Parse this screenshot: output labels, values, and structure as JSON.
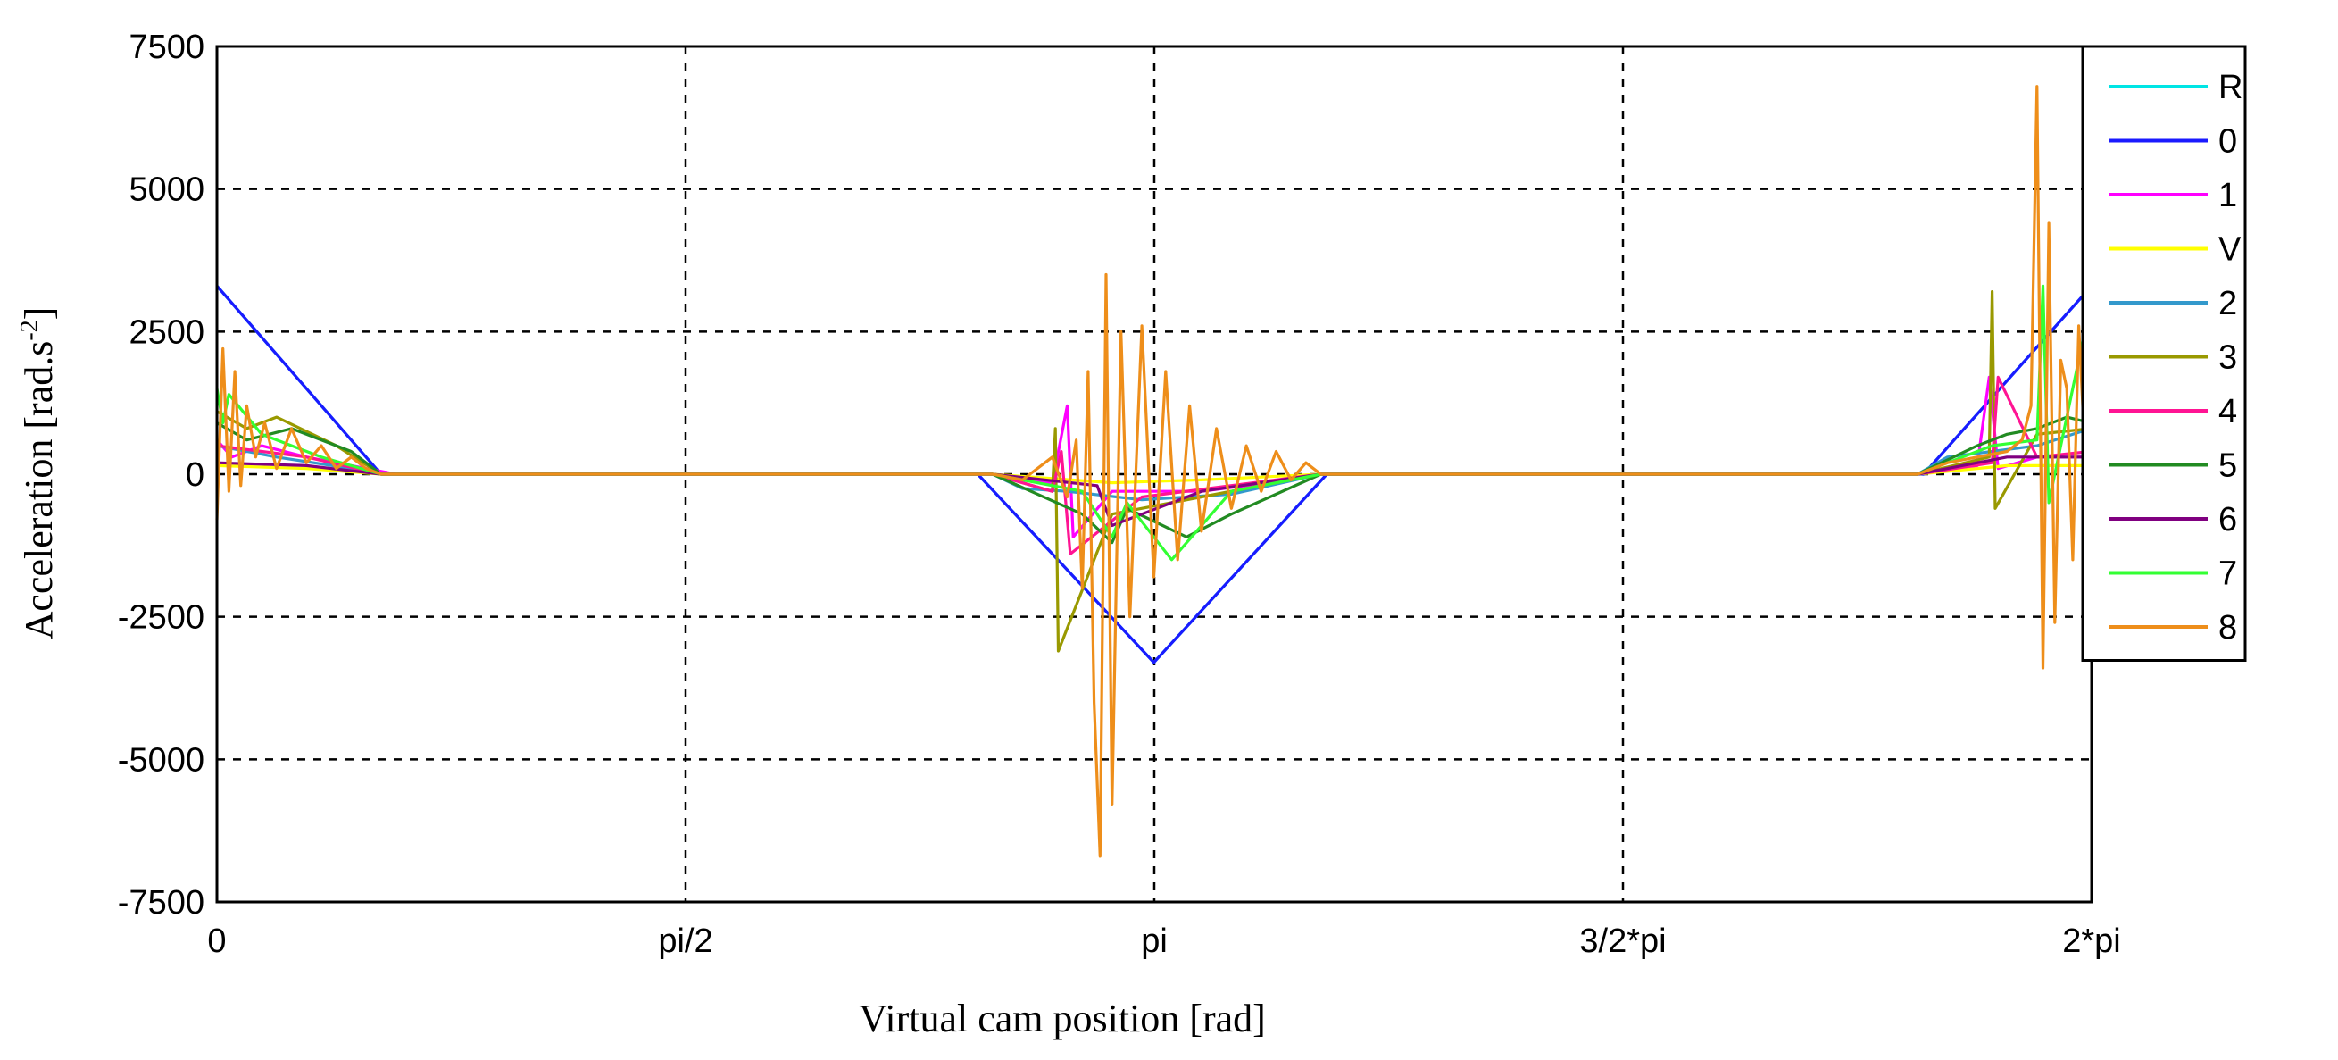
{
  "chart_data": {
    "type": "line",
    "title": "",
    "xlabel": "Virtual cam position [rad]",
    "ylabel": "Acceleration [rad.s",
    "ylabel_superscript": "-2",
    "ylabel_suffix": "]",
    "xlim": [
      0,
      6.2832
    ],
    "ylim": [
      -7500,
      7500
    ],
    "x_ticks": [
      {
        "value": 0,
        "label": "0"
      },
      {
        "value": 1.5708,
        "label": "pi/2"
      },
      {
        "value": 3.1416,
        "label": "pi"
      },
      {
        "value": 4.7124,
        "label": "3/2*pi"
      },
      {
        "value": 6.2832,
        "label": "2*pi"
      }
    ],
    "y_ticks": [
      {
        "value": 7500,
        "label": "7500"
      },
      {
        "value": 5000,
        "label": "5000"
      },
      {
        "value": 2500,
        "label": "2500"
      },
      {
        "value": 0,
        "label": "0"
      },
      {
        "value": -2500,
        "label": "-2500"
      },
      {
        "value": -5000,
        "label": "-5000"
      },
      {
        "value": -7500,
        "label": "-7500"
      }
    ],
    "grid": true,
    "legend_position": "right",
    "series": [
      {
        "name": "R",
        "color": "#00e5e5",
        "x": [
          0,
          0.55,
          2.55,
          3.14,
          3.72,
          5.72,
          6.2832
        ],
        "y": [
          3300,
          0,
          0,
          -3300,
          0,
          0,
          3300
        ]
      },
      {
        "name": "0",
        "color": "#1a1aff",
        "x": [
          0,
          0.55,
          2.55,
          3.14,
          3.72,
          5.72,
          6.2832
        ],
        "y": [
          3300,
          0,
          0,
          -3300,
          0,
          0,
          3300
        ]
      },
      {
        "name": "1",
        "color": "#ff00ff",
        "x": [
          0,
          0.05,
          0.15,
          0.3,
          0.5,
          0.6,
          2.6,
          2.8,
          2.85,
          2.87,
          3.0,
          3.3,
          3.6,
          3.7,
          5.7,
          5.9,
          5.94,
          5.97,
          6.1,
          6.28
        ],
        "y": [
          600,
          300,
          500,
          300,
          100,
          0,
          0,
          -150,
          1200,
          -1100,
          -300,
          -300,
          -100,
          0,
          0,
          150,
          1700,
          100,
          300,
          300
        ]
      },
      {
        "name": "V",
        "color": "#ffff00",
        "x": [
          0,
          0.3,
          0.55,
          2.6,
          3.0,
          3.3,
          3.7,
          5.7,
          6.0,
          6.28
        ],
        "y": [
          150,
          100,
          0,
          0,
          -150,
          -100,
          0,
          0,
          150,
          150
        ]
      },
      {
        "name": "2",
        "color": "#3399cc",
        "x": [
          0,
          0.2,
          0.45,
          0.55,
          2.6,
          2.7,
          2.85,
          3.1,
          3.4,
          3.7,
          5.7,
          5.8,
          5.95,
          6.1,
          6.28
        ],
        "y": [
          500,
          300,
          100,
          0,
          0,
          -250,
          -300,
          -450,
          -350,
          0,
          0,
          300,
          400,
          500,
          800
        ]
      },
      {
        "name": "3",
        "color": "#999900",
        "x": [
          0,
          0.1,
          0.2,
          0.4,
          0.55,
          2.6,
          2.8,
          2.81,
          2.82,
          3.0,
          3.3,
          3.7,
          5.7,
          5.94,
          5.95,
          5.96,
          6.1,
          6.28
        ],
        "y": [
          1100,
          800,
          1000,
          500,
          0,
          0,
          -300,
          800,
          -3100,
          -700,
          -400,
          0,
          0,
          300,
          3200,
          -600,
          700,
          800
        ]
      },
      {
        "name": "4",
        "color": "#ff1493",
        "x": [
          0,
          0.3,
          0.55,
          2.6,
          2.8,
          2.83,
          2.86,
          3.1,
          3.7,
          5.7,
          5.95,
          5.97,
          6.1,
          6.28
        ],
        "y": [
          500,
          300,
          0,
          0,
          -300,
          400,
          -1400,
          -400,
          0,
          0,
          200,
          1700,
          300,
          400
        ]
      },
      {
        "name": "5",
        "color": "#228b22",
        "x": [
          0,
          0.1,
          0.25,
          0.45,
          0.55,
          2.6,
          2.9,
          3.0,
          3.05,
          3.25,
          3.4,
          3.7,
          5.7,
          5.9,
          6.0,
          6.1,
          6.2,
          6.28
        ],
        "y": [
          900,
          600,
          800,
          400,
          0,
          0,
          -700,
          -1200,
          -600,
          -1100,
          -700,
          0,
          0,
          500,
          700,
          800,
          1000,
          900
        ]
      },
      {
        "name": "6",
        "color": "#800080",
        "x": [
          0,
          0.3,
          0.55,
          2.6,
          2.95,
          3.0,
          3.3,
          3.7,
          5.7,
          6.0,
          6.28
        ],
        "y": [
          200,
          150,
          0,
          0,
          -200,
          -900,
          -300,
          0,
          0,
          300,
          300
        ]
      },
      {
        "name": "7",
        "color": "#33ff33",
        "x": [
          0,
          0.02,
          0.04,
          0.15,
          0.35,
          0.55,
          2.6,
          2.9,
          3.0,
          3.05,
          3.2,
          3.4,
          3.7,
          5.7,
          5.95,
          6.1,
          6.12,
          6.14,
          6.28
        ],
        "y": [
          1500,
          900,
          1400,
          700,
          300,
          0,
          0,
          -300,
          -1100,
          -500,
          -1500,
          -300,
          0,
          0,
          500,
          600,
          3300,
          -500,
          3000
        ]
      },
      {
        "name": "8",
        "color": "#ee8e1a",
        "x": [
          0,
          0.02,
          0.04,
          0.06,
          0.08,
          0.1,
          0.13,
          0.16,
          0.2,
          0.25,
          0.3,
          0.35,
          0.4,
          0.45,
          0.5,
          0.55,
          2.6,
          2.7,
          2.8,
          2.85,
          2.88,
          2.9,
          2.92,
          2.94,
          2.96,
          2.98,
          3.0,
          3.03,
          3.06,
          3.1,
          3.14,
          3.18,
          3.22,
          3.26,
          3.3,
          3.35,
          3.4,
          3.45,
          3.5,
          3.55,
          3.6,
          3.65,
          3.7,
          5.7,
          5.8,
          5.9,
          6.0,
          6.05,
          6.08,
          6.1,
          6.12,
          6.14,
          6.16,
          6.18,
          6.2,
          6.22,
          6.24,
          6.26,
          6.28
        ],
        "y": [
          -800,
          2200,
          -300,
          1800,
          -200,
          1200,
          300,
          900,
          100,
          800,
          200,
          500,
          100,
          300,
          100,
          0,
          0,
          -100,
          300,
          -400,
          600,
          -2000,
          1800,
          -4000,
          -6700,
          3500,
          -5800,
          2500,
          -2500,
          2600,
          -1800,
          1800,
          -1500,
          1200,
          -1000,
          800,
          -600,
          500,
          -300,
          400,
          -100,
          200,
          0,
          0,
          200,
          300,
          400,
          600,
          1200,
          6800,
          -3400,
          4400,
          -2600,
          2000,
          1500,
          -1500,
          2600,
          500,
          3200
        ]
      }
    ]
  }
}
